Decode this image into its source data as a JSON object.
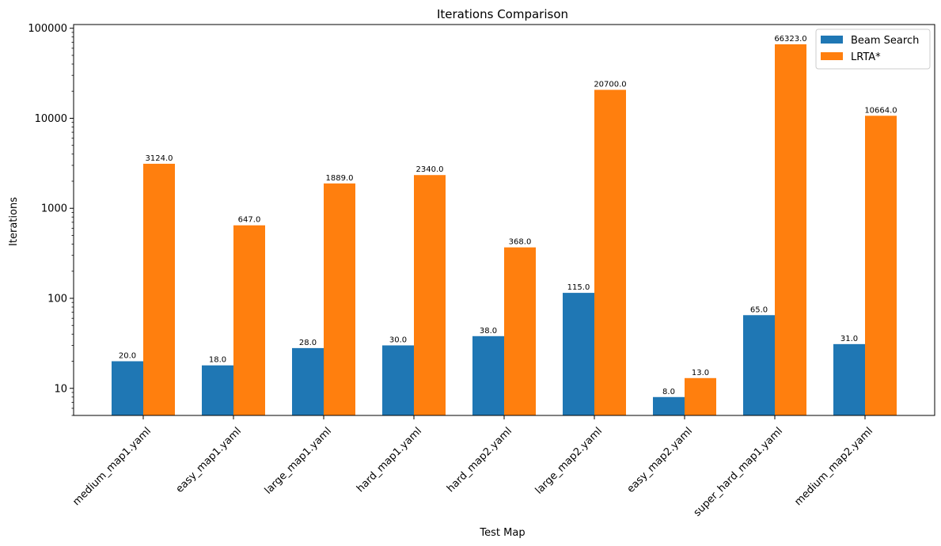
{
  "chart_data": {
    "type": "bar",
    "title": "Iterations Comparison",
    "xlabel": "Test Map",
    "ylabel": "Iterations",
    "yscale": "log",
    "ylim": [
      5,
      110000
    ],
    "yticks": [
      10,
      100,
      1000,
      10000,
      100000
    ],
    "ytick_labels": [
      "10",
      "100",
      "1000",
      "10000",
      "100000"
    ],
    "grid": false,
    "legend_position": "top-right",
    "categories": [
      "medium_map1.yaml",
      "easy_map1.yaml",
      "large_map1.yaml",
      "hard_map1.yaml",
      "hard_map2.yaml",
      "large_map2.yaml",
      "easy_map2.yaml",
      "super_hard_map1.yaml",
      "medium_map2.yaml"
    ],
    "series": [
      {
        "name": "Beam Search",
        "color": "#1f77b4",
        "values": [
          20,
          18,
          28,
          30,
          38,
          115,
          8,
          65,
          31
        ],
        "labels": [
          "20.0",
          "18.0",
          "28.0",
          "30.0",
          "38.0",
          "115.0",
          "8.0",
          "65.0",
          "31.0"
        ]
      },
      {
        "name": "LRTA*",
        "color": "#ff7f0e",
        "values": [
          3124,
          647,
          1889,
          2340,
          368,
          20700,
          13,
          66323,
          10664
        ],
        "labels": [
          "3124.0",
          "647.0",
          "1889.0",
          "2340.0",
          "368.0",
          "20700.0",
          "13.0",
          "66323.0",
          "10664.0"
        ]
      }
    ]
  }
}
